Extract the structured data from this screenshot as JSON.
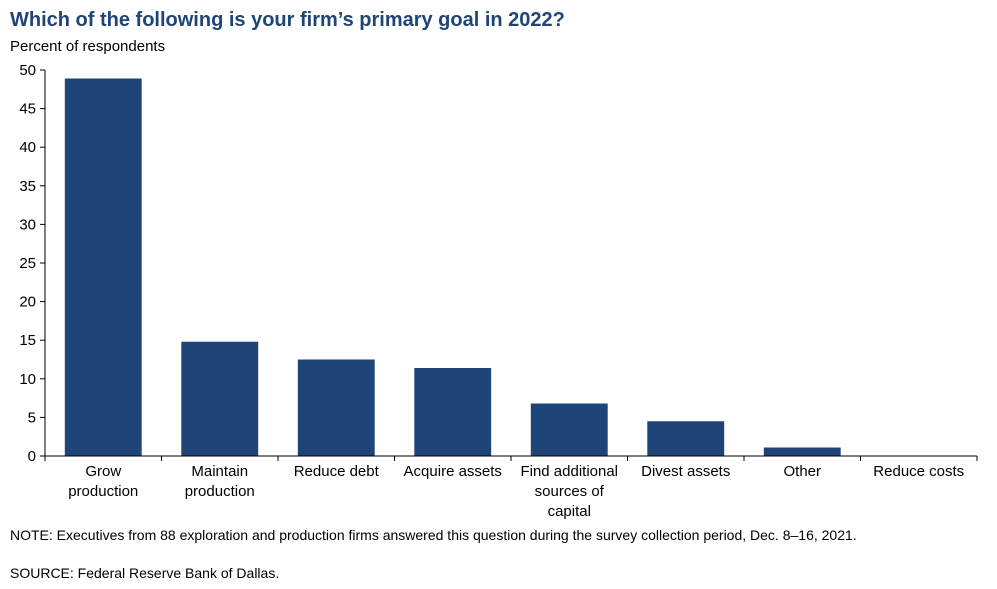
{
  "chart_data": {
    "type": "bar",
    "title": "Which of the following  is your firm’s primary  goal in 2022?",
    "ylabel": "Percent of respondents",
    "categories": [
      "Grow production",
      "Maintain production",
      "Reduce debt",
      "Acquire assets",
      "Find additional sources of capital",
      "Divest assets",
      "Other",
      "Reduce costs"
    ],
    "category_lines": [
      [
        "Grow",
        "production"
      ],
      [
        "Maintain",
        "production"
      ],
      [
        "Reduce debt"
      ],
      [
        "Acquire assets"
      ],
      [
        "Find additional",
        "sources of",
        "capital"
      ],
      [
        "Divest assets"
      ],
      [
        "Other"
      ],
      [
        "Reduce costs"
      ]
    ],
    "values": [
      48.9,
      14.8,
      12.5,
      11.4,
      6.8,
      4.5,
      1.1,
      0.0
    ],
    "ylim": [
      0,
      50
    ],
    "yticks": [
      0,
      5,
      10,
      15,
      20,
      25,
      30,
      35,
      40,
      45,
      50
    ],
    "bar_color": "#1f4477",
    "grid": false,
    "legend": "none"
  },
  "notes": {
    "note": "NOTE:  Executives  from  88  exploration  and  production  firms  answered  this  question  during  the  survey  collection  period,  Dec.  8–16, 2021.",
    "source": "SOURCE:  Federal Reserve Bank of Dallas."
  }
}
